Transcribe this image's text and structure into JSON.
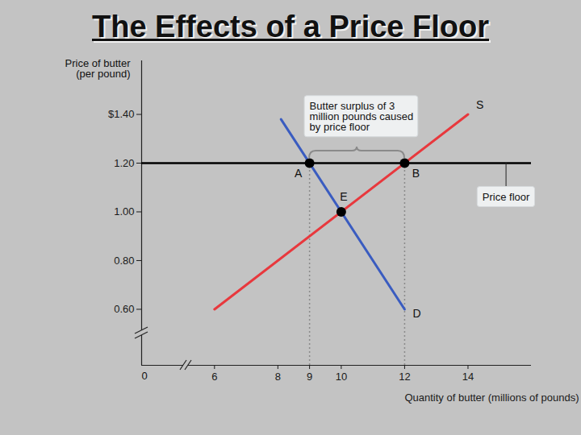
{
  "chart_data": {
    "type": "line",
    "title": "The Effects of a Price Floor",
    "y_label": "Price of butter\n(per pound)",
    "x_label": "Quantity of butter (millions of pounds)",
    "origin_label": "0",
    "xlim": [
      3.7,
      16
    ],
    "xticks": [
      6,
      8,
      9,
      10,
      12,
      14
    ],
    "ylim": [
      0.37,
      1.62
    ],
    "yticks": [
      {
        "value": 0.6,
        "label": "0.60"
      },
      {
        "value": 0.8,
        "label": "0.80"
      },
      {
        "value": 1.0,
        "label": "1.00"
      },
      {
        "value": 1.2,
        "label": "1.20"
      },
      {
        "value": 1.4,
        "label": "$1.40"
      }
    ],
    "series": [
      {
        "name": "S",
        "color": "#e8383d",
        "x": [
          6,
          14
        ],
        "values": [
          0.6,
          1.4
        ]
      },
      {
        "name": "D",
        "color": "#3a5cc0",
        "x": [
          8.1,
          12
        ],
        "values": [
          1.38,
          0.6
        ]
      }
    ],
    "price_floor": {
      "value": 1.2,
      "label": "Price floor",
      "label_x": 15.2,
      "label_y": 1.06,
      "color": "#000000"
    },
    "points": [
      {
        "label": "A",
        "x": 9,
        "y": 1.2
      },
      {
        "label": "B",
        "x": 12,
        "y": 1.2
      },
      {
        "label": "E",
        "x": 10,
        "y": 1.0
      }
    ],
    "surplus_note": {
      "text": "Butter surplus of 3\nmillion pounds caused\nby price floor",
      "x": 9,
      "y": 1.39
    }
  }
}
